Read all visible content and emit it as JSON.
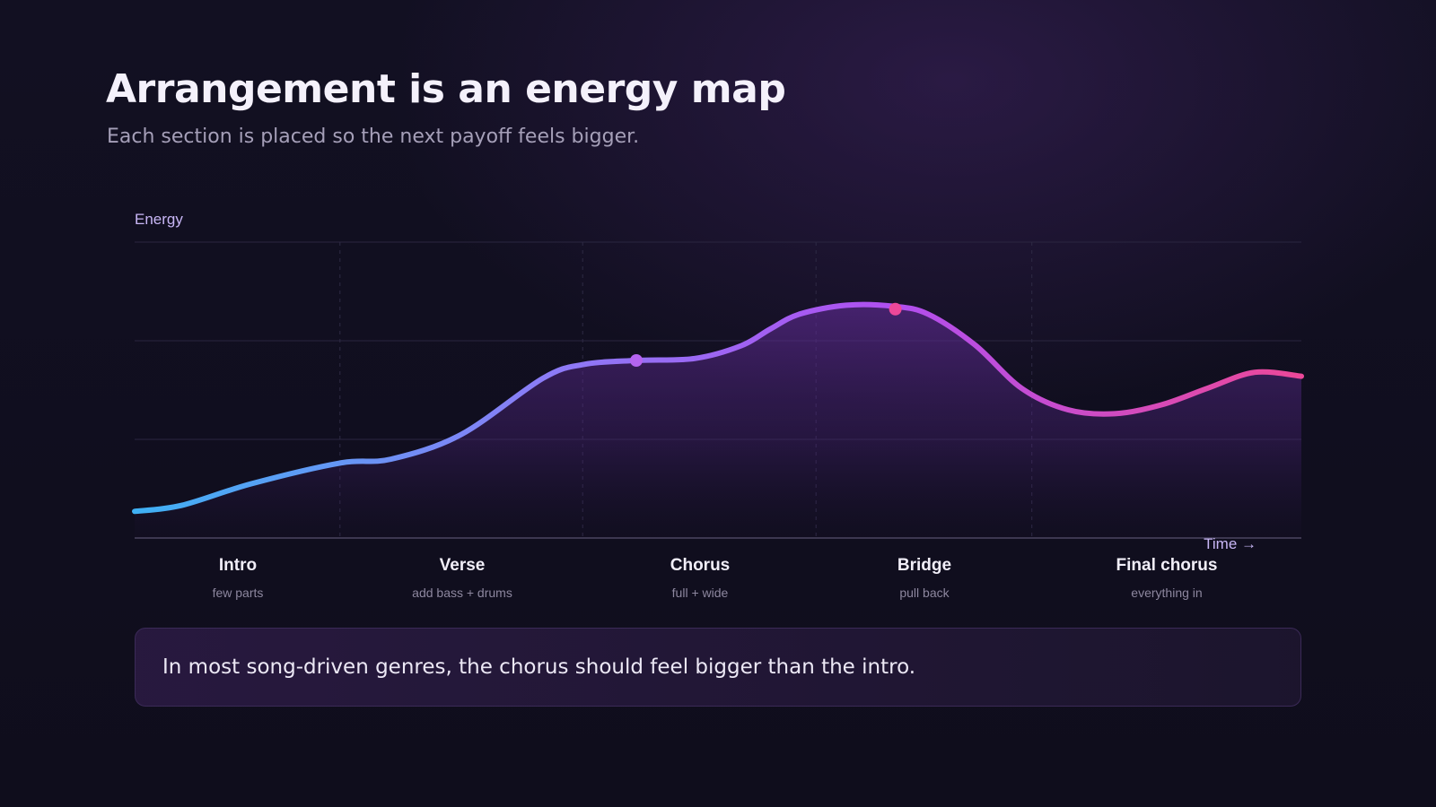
{
  "header": {
    "title": "Arrangement is an energy map",
    "subtitle": "Each section is placed so the next payoff feels bigger."
  },
  "chart_data": {
    "type": "area",
    "title": "",
    "ylabel": "Energy",
    "xlabel": "Time →",
    "xlim": [
      0,
      100
    ],
    "ylim": [
      0,
      3
    ],
    "grid": true,
    "line_gradient": [
      "#3fb1f4",
      "#8b7cf6",
      "#b04ff0",
      "#ec4899"
    ],
    "x": [
      0,
      4,
      10,
      17.6,
      22,
      28,
      35,
      38.5,
      43,
      48,
      52,
      54.5,
      57,
      61,
      65,
      68,
      72,
      76,
      80,
      84,
      88,
      92,
      96,
      100
    ],
    "y": [
      0.27,
      0.33,
      0.55,
      0.76,
      0.8,
      1.05,
      1.62,
      1.76,
      1.8,
      1.82,
      1.95,
      2.12,
      2.27,
      2.36,
      2.35,
      2.27,
      1.96,
      1.52,
      1.3,
      1.26,
      1.35,
      1.52,
      1.68,
      1.64
    ],
    "markers": [
      {
        "x": 43,
        "y": 1.8,
        "color": "#b564f0"
      },
      {
        "x": 65.2,
        "y": 2.32,
        "color": "#ec4899"
      }
    ],
    "section_dividers": [
      17.6,
      38.4,
      58.4,
      76.9
    ],
    "sections": [
      {
        "name": "Intro",
        "desc": "few parts"
      },
      {
        "name": "Verse",
        "desc": "add bass + drums"
      },
      {
        "name": "Chorus",
        "desc": "full + wide"
      },
      {
        "name": "Bridge",
        "desc": "pull back"
      },
      {
        "name": "Final chorus",
        "desc": "everything in"
      }
    ]
  },
  "callout": {
    "text": "In most song-driven genres, the chorus should feel bigger than the intro."
  }
}
